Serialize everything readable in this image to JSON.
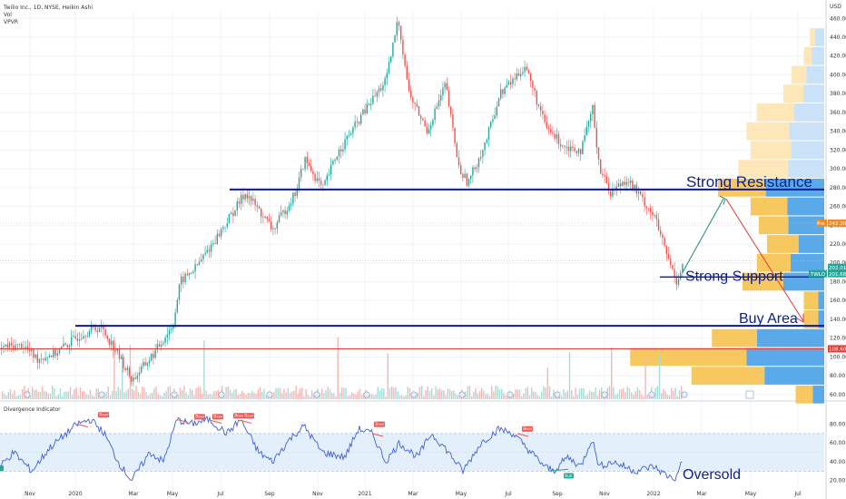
{
  "header": {
    "title": "Twilio Inc., 1D, NYSE, Heikin Ashi",
    "lines": [
      "Vol",
      "VPVR"
    ],
    "currency": "USD"
  },
  "indicator": {
    "title": "Divergence Indicator"
  },
  "annotations": {
    "strong_resistance": "Strong Resistance",
    "strong_support": "Strong Support",
    "buy_area": "Buy Area",
    "oversold": "Oversold"
  },
  "badges": {
    "bear": "Bear",
    "bull": "Bull",
    "pre": "Pre",
    "pre_price": "242.30",
    "close": "202.01",
    "ticker": "TWLO",
    "ticker_price": "201.68",
    "red_line_price": "108.60"
  },
  "colors": {
    "up": "#26a69a",
    "down": "#ef5350",
    "level_line": "#0a1a9c",
    "red_line": "#e53935",
    "vpvr_blue": "#5aa9e8",
    "vpvr_yellow": "#f6c85f",
    "rsi": "#3f5fd6",
    "rsi_band": "#e3f0fb",
    "ann_arrow": "#1f8a70",
    "ann_arrow_down": "#e53935"
  },
  "chart_data": [
    {
      "type": "candlestick",
      "title": "Twilio Inc., 1D, NYSE, Heikin Ashi",
      "x_ticks": [
        "Nov",
        "2020",
        "Mar",
        "May",
        "Jul",
        "Sep",
        "Nov",
        "2021",
        "Mar",
        "May",
        "Jul",
        "Sep",
        "Nov",
        "2022",
        "Mar",
        "May",
        "Jul"
      ],
      "y_ticks": [
        60,
        80,
        100,
        120,
        140,
        160,
        180,
        200,
        220,
        240,
        260,
        280,
        300,
        320,
        340,
        360,
        380,
        400,
        420,
        440,
        460
      ],
      "ylim": [
        55,
        468
      ],
      "anchors": [
        [
          0,
          110
        ],
        [
          25,
          112
        ],
        [
          40,
          98
        ],
        [
          60,
          104
        ],
        [
          90,
          125
        ],
        [
          110,
          132
        ],
        [
          125,
          110
        ],
        [
          145,
          75
        ],
        [
          170,
          105
        ],
        [
          190,
          135
        ],
        [
          198,
          180
        ],
        [
          215,
          195
        ],
        [
          240,
          230
        ],
        [
          270,
          275
        ],
        [
          300,
          235
        ],
        [
          325,
          275
        ],
        [
          335,
          310
        ],
        [
          355,
          278
        ],
        [
          370,
          315
        ],
        [
          400,
          360
        ],
        [
          425,
          395
        ],
        [
          438,
          460
        ],
        [
          450,
          380
        ],
        [
          470,
          340
        ],
        [
          490,
          390
        ],
        [
          505,
          300
        ],
        [
          515,
          285
        ],
        [
          535,
          330
        ],
        [
          550,
          380
        ],
        [
          565,
          395
        ],
        [
          578,
          410
        ],
        [
          600,
          345
        ],
        [
          620,
          325
        ],
        [
          640,
          320
        ],
        [
          652,
          365
        ],
        [
          660,
          300
        ],
        [
          672,
          275
        ],
        [
          690,
          290
        ],
        [
          705,
          270
        ],
        [
          720,
          250
        ],
        [
          735,
          205
        ],
        [
          745,
          180
        ],
        [
          752,
          200
        ]
      ],
      "levels": {
        "strong_resistance": 278,
        "strong_support": 185,
        "buy_area": 133,
        "red_line": 108.6,
        "pre": 242.3,
        "close": 202.01
      },
      "vpvr": [
        {
          "price": 440,
          "vol": 0.07,
          "up": 0.65
        },
        {
          "price": 420,
          "vol": 0.1,
          "up": 0.6
        },
        {
          "price": 400,
          "vol": 0.16,
          "up": 0.55
        },
        {
          "price": 380,
          "vol": 0.2,
          "up": 0.5
        },
        {
          "price": 360,
          "vol": 0.33,
          "up": 0.45
        },
        {
          "price": 340,
          "vol": 0.38,
          "up": 0.45
        },
        {
          "price": 320,
          "vol": 0.36,
          "up": 0.45
        },
        {
          "price": 300,
          "vol": 0.42,
          "up": 0.42
        },
        {
          "price": 280,
          "vol": 0.52,
          "up": 0.55
        },
        {
          "price": 260,
          "vol": 0.36,
          "up": 0.5
        },
        {
          "price": 240,
          "vol": 0.32,
          "up": 0.55
        },
        {
          "price": 220,
          "vol": 0.28,
          "up": 0.45
        },
        {
          "price": 200,
          "vol": 0.33,
          "up": 0.5
        },
        {
          "price": 180,
          "vol": 0.4,
          "up": 0.5
        },
        {
          "price": 160,
          "vol": 0.1,
          "up": 0.3
        },
        {
          "price": 140,
          "vol": 0.1,
          "up": 0.3
        },
        {
          "price": 120,
          "vol": 0.55,
          "up": 0.6
        },
        {
          "price": 100,
          "vol": 0.95,
          "up": 0.4
        },
        {
          "price": 80,
          "vol": 0.65,
          "up": 0.45
        },
        {
          "price": 60,
          "vol": 0.14,
          "up": 0.4
        }
      ]
    },
    {
      "type": "line",
      "title": "Divergence Indicator",
      "y_ticks": [
        20,
        40,
        60,
        80
      ],
      "ylim": [
        10,
        95
      ],
      "band": [
        30,
        70
      ],
      "anchors": [
        [
          0,
          35
        ],
        [
          15,
          50
        ],
        [
          35,
          30
        ],
        [
          55,
          55
        ],
        [
          85,
          80
        ],
        [
          100,
          85
        ],
        [
          115,
          70
        ],
        [
          130,
          40
        ],
        [
          145,
          20
        ],
        [
          165,
          50
        ],
        [
          180,
          40
        ],
        [
          195,
          85
        ],
        [
          210,
          80
        ],
        [
          230,
          85
        ],
        [
          250,
          70
        ],
        [
          265,
          85
        ],
        [
          285,
          50
        ],
        [
          300,
          40
        ],
        [
          320,
          65
        ],
        [
          335,
          78
        ],
        [
          355,
          50
        ],
        [
          380,
          45
        ],
        [
          395,
          75
        ],
        [
          410,
          70
        ],
        [
          425,
          40
        ],
        [
          440,
          60
        ],
        [
          460,
          45
        ],
        [
          475,
          70
        ],
        [
          490,
          55
        ],
        [
          510,
          30
        ],
        [
          530,
          60
        ],
        [
          550,
          75
        ],
        [
          565,
          70
        ],
        [
          580,
          55
        ],
        [
          600,
          35
        ],
        [
          610,
          30
        ],
        [
          625,
          45
        ],
        [
          640,
          35
        ],
        [
          652,
          65
        ],
        [
          660,
          35
        ],
        [
          675,
          40
        ],
        [
          700,
          30
        ],
        [
          720,
          35
        ],
        [
          735,
          25
        ],
        [
          745,
          22
        ],
        [
          752,
          45
        ]
      ]
    }
  ]
}
